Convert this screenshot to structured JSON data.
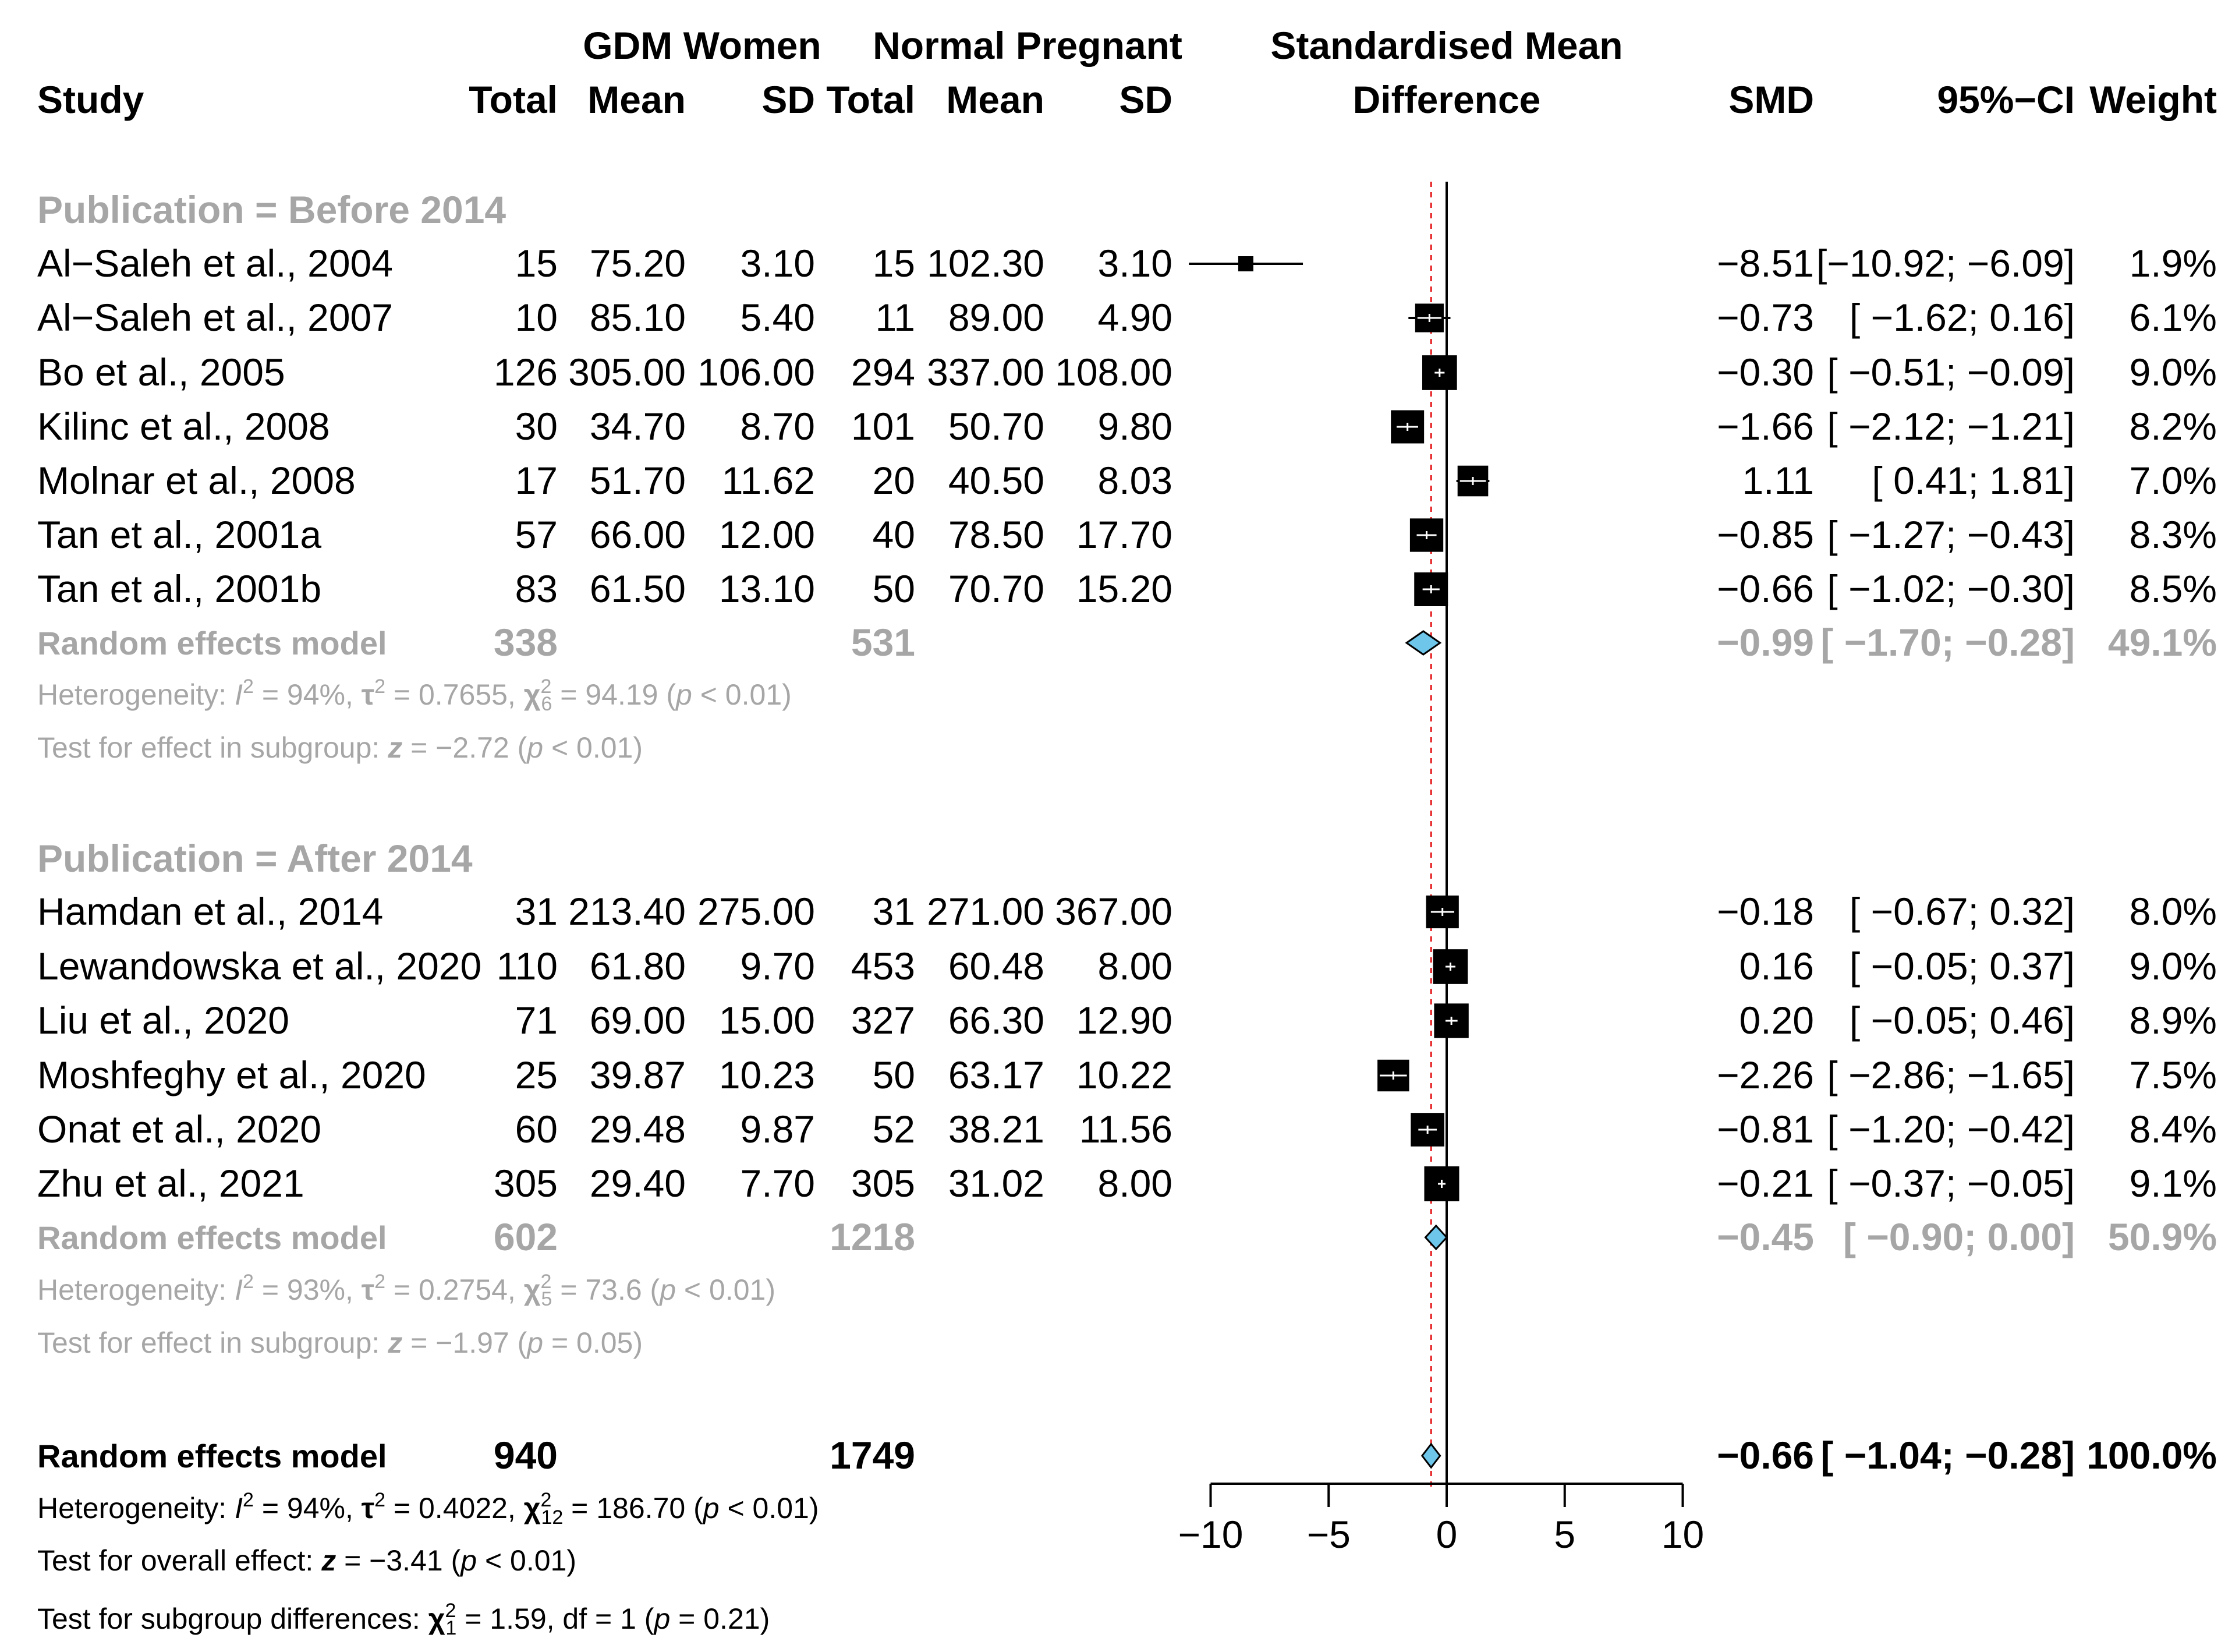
{
  "chart_data": {
    "type": "forest",
    "title": "Standardised Mean Difference",
    "headers": {
      "study": "Study",
      "group1": "GDM Women",
      "group2": "Normal Pregnant",
      "total": "Total",
      "mean": "Mean",
      "sd": "SD",
      "effect_line1": "Standardised Mean",
      "effect_line2": "Difference",
      "smd": "SMD",
      "ci": "95%−CI",
      "weight": "Weight"
    },
    "xaxis": {
      "ticks": [
        -10,
        -5,
        0,
        5,
        10
      ],
      "tick_labels": [
        "−10",
        "−5",
        "0",
        "5",
        "10"
      ],
      "xlim": [
        -10,
        10
      ]
    },
    "null_line": 0,
    "overall_line": -0.66,
    "subgroups": [
      {
        "label": "Publication = Before 2014",
        "studies": [
          {
            "name": "Al−Saleh et al., 2004",
            "t1": "15",
            "m1": "75.20",
            "s1": "3.10",
            "t2": "15",
            "m2": "102.30",
            "s2": "3.10",
            "smd_text": "−8.51",
            "ci_text": "[−10.92; −6.09]",
            "weight_text": "1.9%",
            "smd": -8.51,
            "lo": -10.92,
            "hi": -6.09,
            "weight": 1.9
          },
          {
            "name": "Al−Saleh et al., 2007",
            "t1": "10",
            "m1": "85.10",
            "s1": "5.40",
            "t2": "11",
            "m2": "89.00",
            "s2": "4.90",
            "smd_text": "−0.73",
            "ci_text": "[ −1.62;  0.16]",
            "weight_text": "6.1%",
            "smd": -0.73,
            "lo": -1.62,
            "hi": 0.16,
            "weight": 6.1
          },
          {
            "name": "Bo et al., 2005",
            "t1": "126",
            "m1": "305.00",
            "s1": "106.00",
            "t2": "294",
            "m2": "337.00",
            "s2": "108.00",
            "smd_text": "−0.30",
            "ci_text": "[ −0.51; −0.09]",
            "weight_text": "9.0%",
            "smd": -0.3,
            "lo": -0.51,
            "hi": -0.09,
            "weight": 9.0
          },
          {
            "name": "Kilinc et al., 2008",
            "t1": "30",
            "m1": "34.70",
            "s1": "8.70",
            "t2": "101",
            "m2": "50.70",
            "s2": "9.80",
            "smd_text": "−1.66",
            "ci_text": "[ −2.12; −1.21]",
            "weight_text": "8.2%",
            "smd": -1.66,
            "lo": -2.12,
            "hi": -1.21,
            "weight": 8.2
          },
          {
            "name": "Molnar et al., 2008",
            "t1": "17",
            "m1": "51.70",
            "s1": "11.62",
            "t2": "20",
            "m2": "40.50",
            "s2": "8.03",
            "smd_text": "1.11",
            "ci_text": "[  0.41;  1.81]",
            "weight_text": "7.0%",
            "smd": 1.11,
            "lo": 0.41,
            "hi": 1.81,
            "weight": 7.0
          },
          {
            "name": "Tan et al., 2001a",
            "t1": "57",
            "m1": "66.00",
            "s1": "12.00",
            "t2": "40",
            "m2": "78.50",
            "s2": "17.70",
            "smd_text": "−0.85",
            "ci_text": "[ −1.27; −0.43]",
            "weight_text": "8.3%",
            "smd": -0.85,
            "lo": -1.27,
            "hi": -0.43,
            "weight": 8.3
          },
          {
            "name": "Tan et al., 2001b",
            "t1": "83",
            "m1": "61.50",
            "s1": "13.10",
            "t2": "50",
            "m2": "70.70",
            "s2": "15.20",
            "smd_text": "−0.66",
            "ci_text": "[ −1.02; −0.30]",
            "weight_text": "8.5%",
            "smd": -0.66,
            "lo": -1.02,
            "hi": -0.3,
            "weight": 8.5
          }
        ],
        "model": {
          "label": "Random effects model",
          "t1": "338",
          "t2": "531",
          "smd_text": "−0.99",
          "ci_text": "[ −1.70; −0.28]",
          "weight_text": "49.1%",
          "smd": -0.99,
          "lo": -1.7,
          "hi": -0.28
        },
        "heterogeneity": {
          "prefix": "Heterogeneity: ",
          "i2_sym": "I",
          "i2_sup": "2",
          "i2_val": " = 94%, ",
          "tau_sym": "τ",
          "tau_sup": "2",
          "tau_val": " = 0.7655, ",
          "chi_sym": "χ",
          "chi_sup": "2",
          "chi_sub": "6",
          "chi_val": " = 94.19 (",
          "p_sym": "p",
          "p_val": " < 0.01)"
        },
        "test": {
          "prefix": "Test for effect in subgroup: ",
          "z_sym": "z",
          "z_val": " = −2.72 (",
          "p_sym": "p",
          "p_val": " < 0.01)"
        }
      },
      {
        "label": "Publication = After 2014",
        "studies": [
          {
            "name": "Hamdan et al., 2014",
            "t1": "31",
            "m1": "213.40",
            "s1": "275.00",
            "t2": "31",
            "m2": "271.00",
            "s2": "367.00",
            "smd_text": "−0.18",
            "ci_text": "[ −0.67;  0.32]",
            "weight_text": "8.0%",
            "smd": -0.18,
            "lo": -0.67,
            "hi": 0.32,
            "weight": 8.0
          },
          {
            "name": "Lewandowska et al., 2020",
            "t1": "110",
            "m1": "61.80",
            "s1": "9.70",
            "t2": "453",
            "m2": "60.48",
            "s2": "8.00",
            "smd_text": "0.16",
            "ci_text": "[ −0.05;  0.37]",
            "weight_text": "9.0%",
            "smd": 0.16,
            "lo": -0.05,
            "hi": 0.37,
            "weight": 9.0
          },
          {
            "name": "Liu et al., 2020",
            "t1": "71",
            "m1": "69.00",
            "s1": "15.00",
            "t2": "327",
            "m2": "66.30",
            "s2": "12.90",
            "smd_text": "0.20",
            "ci_text": "[ −0.05;  0.46]",
            "weight_text": "8.9%",
            "smd": 0.2,
            "lo": -0.05,
            "hi": 0.46,
            "weight": 8.9
          },
          {
            "name": "Moshfeghy et al., 2020",
            "t1": "25",
            "m1": "39.87",
            "s1": "10.23",
            "t2": "50",
            "m2": "63.17",
            "s2": "10.22",
            "smd_text": "−2.26",
            "ci_text": "[ −2.86; −1.65]",
            "weight_text": "7.5%",
            "smd": -2.26,
            "lo": -2.86,
            "hi": -1.65,
            "weight": 7.5
          },
          {
            "name": "Onat et al., 2020",
            "t1": "60",
            "m1": "29.48",
            "s1": "9.87",
            "t2": "52",
            "m2": "38.21",
            "s2": "11.56",
            "smd_text": "−0.81",
            "ci_text": "[ −1.20; −0.42]",
            "weight_text": "8.4%",
            "smd": -0.81,
            "lo": -1.2,
            "hi": -0.42,
            "weight": 8.4
          },
          {
            "name": "Zhu et al., 2021",
            "t1": "305",
            "m1": "29.40",
            "s1": "7.70",
            "t2": "305",
            "m2": "31.02",
            "s2": "8.00",
            "smd_text": "−0.21",
            "ci_text": "[ −0.37; −0.05]",
            "weight_text": "9.1%",
            "smd": -0.21,
            "lo": -0.37,
            "hi": -0.05,
            "weight": 9.1
          }
        ],
        "model": {
          "label": "Random effects model",
          "t1": "602",
          "t2": "1218",
          "smd_text": "−0.45",
          "ci_text": "[ −0.90;  0.00]",
          "weight_text": "50.9%",
          "smd": -0.45,
          "lo": -0.9,
          "hi": 0.0
        },
        "heterogeneity": {
          "prefix": "Heterogeneity: ",
          "i2_sym": "I",
          "i2_sup": "2",
          "i2_val": " = 93%, ",
          "tau_sym": "τ",
          "tau_sup": "2",
          "tau_val": " = 0.2754, ",
          "chi_sym": "χ",
          "chi_sup": "2",
          "chi_sub": "5",
          "chi_val": " = 73.6 (",
          "p_sym": "p",
          "p_val": " < 0.01)"
        },
        "test": {
          "prefix": "Test for effect in subgroup: ",
          "z_sym": "z",
          "z_val": " = −1.97 (",
          "p_sym": "p",
          "p_val": " = 0.05)"
        }
      }
    ],
    "overall": {
      "label": "Random effects model",
      "t1": "940",
      "t2": "1749",
      "smd_text": "−0.66",
      "ci_text": "[ −1.04; −0.28]",
      "weight_text": "100.0%",
      "smd": -0.66,
      "lo": -1.04,
      "hi": -0.28
    },
    "overall_heterogeneity": {
      "prefix": "Heterogeneity: ",
      "i2_sym": "I",
      "i2_sup": "2",
      "i2_val": " = 94%, ",
      "tau_sym": "τ",
      "tau_sup": "2",
      "tau_val": " = 0.4022, ",
      "chi_sym": "χ",
      "chi_sup": "2",
      "chi_sub": "12",
      "chi_val": " = 186.70 (",
      "p_sym": "p",
      "p_val": " < 0.01)"
    },
    "overall_test": {
      "prefix": "Test for overall effect: ",
      "z_sym": "z",
      "z_val": " = −3.41 (",
      "p_sym": "p",
      "p_val": " < 0.01)"
    },
    "subgroup_test": {
      "prefix": "Test for subgroup differences: ",
      "chi_sym": "χ",
      "chi_sup": "2",
      "chi_sub": "1",
      "chi_val": " = 1.59, df = 1 (",
      "p_sym": "p",
      "p_val": " = 0.21)"
    },
    "colors": {
      "text": "#000000",
      "subgroup_grey": "#a6a6a6",
      "diamond": "#6ec6ea",
      "null_line": "#000000",
      "overall_line": "#e41a1c",
      "square": "#000000"
    }
  }
}
